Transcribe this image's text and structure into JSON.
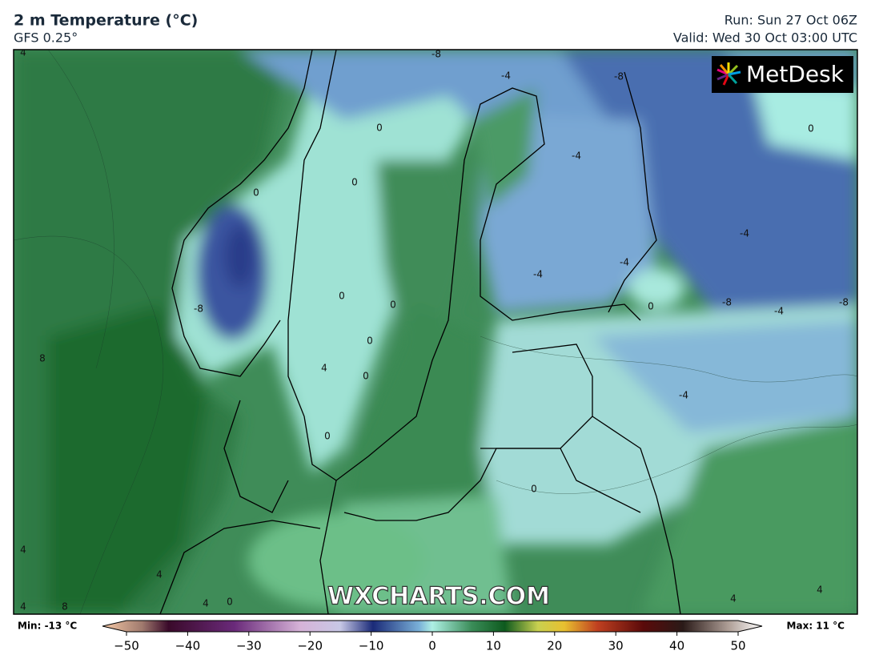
{
  "header": {
    "title": "2 m Temperature (°C)",
    "model": "GFS 0.25°",
    "run": "Run: Sun 27 Oct 06Z",
    "valid": "Valid: Wed 30 Oct 03:00 UTC"
  },
  "map": {
    "logo": "MetDesk",
    "watermark": "WXCHARTS.COM",
    "contour_labels": [
      "4",
      "-8",
      "-4",
      "-8",
      "0",
      "0",
      "-4",
      "0",
      "0",
      "-4",
      "-4",
      "-4",
      "-8",
      "0",
      "0",
      "0",
      "-8",
      "-4",
      "-8",
      "0",
      "8",
      "4",
      "0",
      "-4",
      "0",
      "0",
      "4",
      "4",
      "4",
      "0",
      "8",
      "4",
      "4",
      "4"
    ]
  },
  "colorbar": {
    "min_label": "Min: -13 °C",
    "max_label": "Max: 11 °C",
    "range": [
      -50,
      50
    ],
    "ticks": [
      {
        "value": -50,
        "label": "−50"
      },
      {
        "value": -40,
        "label": "−40"
      },
      {
        "value": -30,
        "label": "−30"
      },
      {
        "value": -20,
        "label": "−20"
      },
      {
        "value": -10,
        "label": "−10"
      },
      0,
      10,
      20,
      30,
      40,
      50
    ]
  }
}
